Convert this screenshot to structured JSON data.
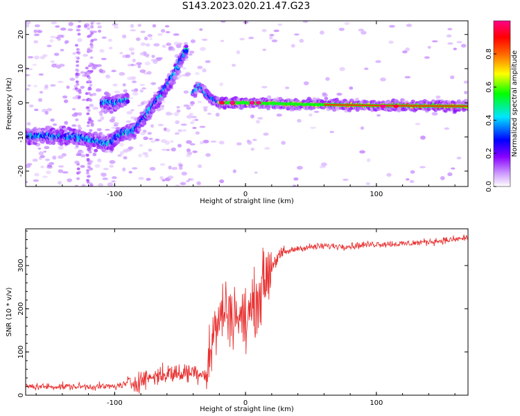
{
  "title": "S143.2023.020.21.47.G23",
  "chart_data": [
    {
      "type": "heatmap",
      "xlabel": "Height of straight line (km)",
      "ylabel": "Frequency (Hz)",
      "xlim": [
        -168,
        170
      ],
      "ylim": [
        -24.5,
        24
      ],
      "x_ticks": [
        -100,
        0,
        100
      ],
      "y_ticks": [
        -20,
        -10,
        0,
        10,
        20
      ],
      "grid": false,
      "colorbar": {
        "label": "Normalized spectral amplitude",
        "ticks": [
          "0.0",
          "0.2",
          "0.4",
          "0.6",
          "0.8"
        ],
        "range": [
          0,
          1
        ],
        "colormap": [
          "#ffffff",
          "#cc99ff",
          "#8800ff",
          "#0000ff",
          "#00e5ff",
          "#00ff00",
          "#ffff00",
          "#ff6600",
          "#ff0000",
          "#ff00aa"
        ]
      },
      "ridges": [
        {
          "x": [
            -168,
            -150,
            -130,
            -115,
            -105,
            -95,
            -85
          ],
          "y": [
            -10,
            -9.5,
            -10,
            -11,
            -12,
            -9,
            -8
          ]
        },
        {
          "x": [
            -85,
            -75,
            -65,
            -55,
            -45
          ],
          "y": [
            -8,
            -3,
            2,
            8,
            16
          ]
        },
        {
          "x": [
            -40,
            -35,
            -30,
            -25,
            -20,
            0,
            50,
            100,
            170
          ],
          "y": [
            3,
            5,
            2.5,
            1,
            0,
            0,
            -0.5,
            -0.8,
            -1
          ]
        },
        {
          "x": [
            -110,
            -100,
            -90
          ],
          "y": [
            0,
            0,
            1
          ]
        }
      ],
      "strong_points": [
        {
          "x": -18,
          "y": 0,
          "value": 0.95
        },
        {
          "x": -10,
          "y": 0,
          "value": 1.0
        },
        {
          "x": 5,
          "y": 0,
          "value": 1.0
        },
        {
          "x": 10,
          "y": 0,
          "value": 1.0
        },
        {
          "x": 105,
          "y": -1,
          "value": 1.0
        },
        {
          "x": 115,
          "y": -1,
          "value": 0.95
        }
      ]
    },
    {
      "type": "line",
      "xlabel": "Height of straight line (km)",
      "ylabel": "SNR (10 * v/v)",
      "xlim": [
        -168,
        170
      ],
      "ylim": [
        0,
        385
      ],
      "x_ticks": [
        -100,
        0,
        100
      ],
      "y_ticks": [
        0,
        100,
        200,
        300
      ],
      "grid": false,
      "color": "#e83030",
      "series": [
        {
          "x": [
            -168,
            -140,
            -120,
            -100,
            -85,
            -75,
            -60,
            -50,
            -40,
            -30,
            -25,
            -20,
            -15,
            -10,
            -5,
            0,
            5,
            10,
            15,
            20,
            25,
            30,
            40,
            60,
            80,
            100,
            120,
            140,
            160,
            170
          ],
          "y": [
            20,
            20,
            20,
            20,
            30,
            40,
            50,
            50,
            55,
            50,
            130,
            180,
            200,
            190,
            180,
            170,
            200,
            230,
            270,
            300,
            320,
            330,
            340,
            345,
            345,
            350,
            350,
            355,
            360,
            365
          ]
        }
      ]
    }
  ]
}
